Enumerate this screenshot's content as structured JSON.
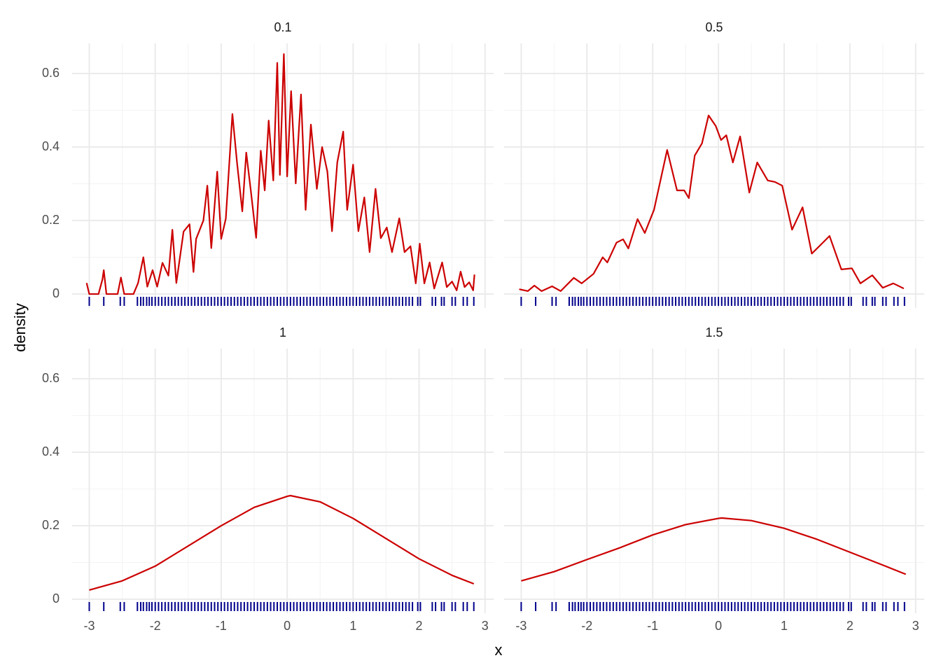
{
  "chart_data": {
    "type": "line",
    "x_label": "x",
    "y_label": "density",
    "xlim": [
      -3.26,
      3.13
    ],
    "ylim": [
      -0.038,
      0.682
    ],
    "xticks": [
      -3,
      -2,
      -1,
      0,
      1,
      2,
      3
    ],
    "yticks": [
      0,
      0.2,
      0.4,
      0.6
    ],
    "xminor": [
      -2.5,
      -1.5,
      -0.5,
      0.5,
      1.5,
      2.5
    ],
    "yminor": [
      0.1,
      0.3,
      0.5
    ],
    "grid": true,
    "color": "#cc0000",
    "rug_color": "#00008b",
    "rug": [
      -3.0,
      -2.78,
      -2.53,
      -2.47,
      -2.27,
      -2.22,
      -2.18,
      -2.13,
      -2.09,
      -2.05,
      -2.0,
      -1.95,
      -1.9,
      -1.85,
      -1.8,
      -1.75,
      -1.7,
      -1.65,
      -1.6,
      -1.55,
      -1.5,
      -1.45,
      -1.4,
      -1.35,
      -1.3,
      -1.25,
      -1.2,
      -1.15,
      -1.1,
      -1.05,
      -1.0,
      -0.95,
      -0.9,
      -0.85,
      -0.8,
      -0.75,
      -0.7,
      -0.65,
      -0.6,
      -0.55,
      -0.5,
      -0.45,
      -0.4,
      -0.35,
      -0.3,
      -0.25,
      -0.2,
      -0.15,
      -0.1,
      -0.05,
      0.0,
      0.05,
      0.1,
      0.15,
      0.2,
      0.25,
      0.3,
      0.35,
      0.4,
      0.45,
      0.5,
      0.55,
      0.6,
      0.65,
      0.7,
      0.75,
      0.8,
      0.85,
      0.9,
      0.95,
      1.0,
      1.05,
      1.1,
      1.15,
      1.2,
      1.25,
      1.3,
      1.35,
      1.4,
      1.45,
      1.5,
      1.55,
      1.6,
      1.65,
      1.7,
      1.75,
      1.8,
      1.85,
      1.9,
      1.98,
      2.02,
      2.2,
      2.25,
      2.34,
      2.38,
      2.5,
      2.55,
      2.67,
      2.73,
      2.83
    ],
    "facets": [
      {
        "title": "0.1",
        "x": [
          -3.04,
          -3.0,
          -2.86,
          -2.8,
          -2.78,
          -2.74,
          -2.57,
          -2.52,
          -2.47,
          -2.33,
          -2.26,
          -2.18,
          -2.12,
          -2.04,
          -1.97,
          -1.89,
          -1.8,
          -1.74,
          -1.68,
          -1.57,
          -1.48,
          -1.42,
          -1.38,
          -1.27,
          -1.21,
          -1.15,
          -1.06,
          -1.0,
          -0.93,
          -0.83,
          -0.76,
          -0.68,
          -0.62,
          -0.55,
          -0.47,
          -0.4,
          -0.34,
          -0.28,
          -0.21,
          -0.15,
          -0.11,
          -0.05,
          0.0,
          0.06,
          0.13,
          0.21,
          0.28,
          0.36,
          0.45,
          0.53,
          0.61,
          0.68,
          0.76,
          0.85,
          0.91,
          1.0,
          1.08,
          1.17,
          1.25,
          1.34,
          1.42,
          1.51,
          1.59,
          1.7,
          1.78,
          1.87,
          1.95,
          2.01,
          2.08,
          2.16,
          2.23,
          2.35,
          2.42,
          2.5,
          2.57,
          2.63,
          2.69,
          2.76,
          2.82,
          2.84
        ],
        "values": [
          0.03,
          0.0,
          0.0,
          0.04,
          0.065,
          0.0,
          0.0,
          0.045,
          0.0,
          0.0,
          0.03,
          0.1,
          0.02,
          0.065,
          0.02,
          0.085,
          0.05,
          0.175,
          0.03,
          0.17,
          0.19,
          0.06,
          0.15,
          0.2,
          0.295,
          0.125,
          0.333,
          0.15,
          0.205,
          0.49,
          0.358,
          0.225,
          0.385,
          0.28,
          0.153,
          0.39,
          0.282,
          0.472,
          0.309,
          0.629,
          0.324,
          0.653,
          0.32,
          0.552,
          0.301,
          0.543,
          0.229,
          0.461,
          0.286,
          0.4,
          0.333,
          0.171,
          0.358,
          0.442,
          0.229,
          0.352,
          0.171,
          0.263,
          0.114,
          0.286,
          0.152,
          0.181,
          0.114,
          0.206,
          0.114,
          0.13,
          0.029,
          0.137,
          0.029,
          0.086,
          0.015,
          0.086,
          0.019,
          0.034,
          0.01,
          0.061,
          0.019,
          0.032,
          0.01,
          0.053
        ]
      },
      {
        "title": "0.5",
        "x": [
          -3.03,
          -2.9,
          -2.8,
          -2.69,
          -2.53,
          -2.4,
          -2.2,
          -2.08,
          -1.9,
          -1.76,
          -1.69,
          -1.55,
          -1.45,
          -1.37,
          -1.23,
          -1.12,
          -0.98,
          -0.78,
          -0.63,
          -0.52,
          -0.45,
          -0.36,
          -0.25,
          -0.15,
          -0.04,
          0.04,
          0.12,
          0.22,
          0.33,
          0.47,
          0.59,
          0.75,
          0.86,
          0.97,
          1.12,
          1.28,
          1.42,
          1.55,
          1.69,
          1.87,
          2.03,
          2.16,
          2.34,
          2.5,
          2.66,
          2.82
        ],
        "values": [
          0.013,
          0.008,
          0.023,
          0.008,
          0.021,
          0.008,
          0.044,
          0.029,
          0.055,
          0.1,
          0.086,
          0.14,
          0.149,
          0.124,
          0.204,
          0.166,
          0.229,
          0.392,
          0.282,
          0.282,
          0.261,
          0.377,
          0.41,
          0.486,
          0.457,
          0.419,
          0.432,
          0.358,
          0.429,
          0.276,
          0.358,
          0.309,
          0.305,
          0.295,
          0.175,
          0.236,
          0.11,
          0.133,
          0.158,
          0.067,
          0.07,
          0.029,
          0.051,
          0.017,
          0.029,
          0.015
        ]
      },
      {
        "title": "1",
        "x": [
          -3.0,
          -2.5,
          -2.0,
          -1.5,
          -1.0,
          -0.5,
          0.0,
          0.05,
          0.5,
          1.0,
          1.5,
          2.0,
          2.5,
          2.83
        ],
        "values": [
          0.025,
          0.05,
          0.09,
          0.145,
          0.2,
          0.25,
          0.28,
          0.282,
          0.265,
          0.22,
          0.165,
          0.11,
          0.065,
          0.042
        ]
      },
      {
        "title": "1.5",
        "x": [
          -3.0,
          -2.5,
          -2.0,
          -1.5,
          -1.0,
          -0.5,
          0.0,
          0.05,
          0.5,
          1.0,
          1.5,
          2.0,
          2.5,
          2.85
        ],
        "values": [
          0.05,
          0.075,
          0.108,
          0.14,
          0.175,
          0.203,
          0.22,
          0.221,
          0.214,
          0.193,
          0.163,
          0.128,
          0.093,
          0.068
        ]
      }
    ]
  }
}
